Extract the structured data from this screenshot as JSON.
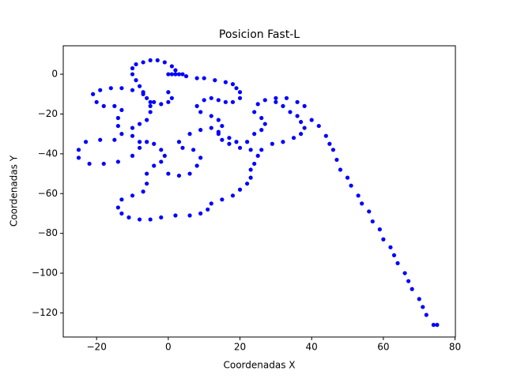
{
  "chart_data": {
    "type": "scatter",
    "title": "Posicion Fast-L",
    "x_label": "Coordenadas X",
    "y_label": "Coordenadas Y",
    "color": "#0000ff",
    "xlim": [
      -29.3,
      80.1
    ],
    "ylim": [
      -132.1,
      14.3
    ],
    "xticks": [
      {
        "value": -20,
        "label": "−20"
      },
      0,
      20,
      40,
      60,
      80
    ],
    "yticks": [
      {
        "value": -120,
        "label": "−120"
      },
      {
        "value": -100,
        "label": "−100"
      },
      {
        "value": -80,
        "label": "−80"
      },
      {
        "value": -60,
        "label": "−60"
      },
      {
        "value": -40,
        "label": "−40"
      },
      {
        "value": -20,
        "label": "−20"
      },
      0
    ],
    "x": [
      0,
      1,
      2,
      3,
      4,
      2,
      1,
      -1,
      -3,
      -5,
      -7,
      -9,
      -10,
      -10,
      -9,
      -8,
      -7,
      -6,
      -4,
      -2,
      0,
      1,
      0,
      5,
      8,
      10,
      13,
      16,
      18,
      19,
      20,
      20,
      18,
      16,
      14,
      12,
      10,
      8,
      9,
      12,
      14,
      15,
      14,
      17,
      19,
      22,
      -5,
      -7,
      -10,
      -13,
      -16,
      -19,
      -21,
      -20,
      -18,
      -15,
      -13,
      -14,
      -14,
      -13,
      -15,
      -19,
      -23,
      -25,
      -25,
      -22,
      -18,
      -14,
      -10,
      -8,
      -6,
      -4,
      -2,
      -1,
      -2,
      -4,
      -6,
      -6,
      -7,
      -10,
      -13,
      -14,
      -13,
      -11,
      -8,
      -5,
      -2,
      2,
      6,
      9,
      11,
      12,
      15,
      18,
      20,
      22,
      23,
      23,
      24,
      25,
      26,
      -8,
      -10,
      -10,
      -8,
      -6,
      -5,
      -5,
      0,
      3,
      6,
      8,
      9,
      7,
      4,
      3,
      6,
      9,
      12,
      14,
      15,
      17,
      20,
      23,
      29,
      32,
      35,
      37,
      38,
      37,
      36,
      34,
      32,
      30,
      27,
      25,
      24,
      26,
      27,
      26,
      24,
      30,
      33,
      36,
      38,
      40,
      42,
      44,
      45,
      46,
      47,
      48,
      50,
      51,
      53,
      54,
      56,
      57,
      59,
      60,
      62,
      63,
      64,
      66,
      67,
      68,
      70,
      71,
      72,
      74,
      75
    ],
    "values": [
      0,
      0,
      0,
      0,
      0,
      2,
      4,
      6,
      7,
      7,
      6,
      5,
      3,
      0,
      -3,
      -6,
      -9,
      -12,
      -14,
      -15,
      -14,
      -12,
      -9,
      -1,
      -2,
      -2,
      -3,
      -4,
      -5,
      -7,
      -9,
      -12,
      -14,
      -14,
      -13,
      -12,
      -13,
      -16,
      -19,
      -21,
      -23,
      -26,
      -29,
      -32,
      -34,
      -34,
      -14,
      -10,
      -8,
      -7,
      -7,
      -8,
      -10,
      -14,
      -16,
      -16,
      -18,
      -22,
      -26,
      -30,
      -33,
      -33,
      -34,
      -38,
      -42,
      -45,
      -45,
      -44,
      -41,
      -37,
      -34,
      -35,
      -38,
      -41,
      -44,
      -46,
      -50,
      -55,
      -59,
      -61,
      -63,
      -67,
      -70,
      -72,
      -73,
      -73,
      -72,
      -71,
      -71,
      -70,
      -68,
      -65,
      -63,
      -61,
      -58,
      -55,
      -52,
      -48,
      -45,
      -41,
      -38,
      -34,
      -31,
      -27,
      -25,
      -23,
      -19,
      -16,
      -50,
      -51,
      -50,
      -46,
      -42,
      -38,
      -37,
      -34,
      -30,
      -28,
      -27,
      -30,
      -33,
      -35,
      -37,
      -38,
      -35,
      -34,
      -32,
      -30,
      -27,
      -24,
      -21,
      -19,
      -16,
      -14,
      -13,
      -15,
      -19,
      -22,
      -25,
      -28,
      -30,
      -12,
      -12,
      -14,
      -16,
      -23,
      -26,
      -31,
      -35,
      -38,
      -43,
      -48,
      -52,
      -56,
      -61,
      -65,
      -69,
      -74,
      -78,
      -83,
      -87,
      -91,
      -95,
      -100,
      -104,
      -108,
      -113,
      -117,
      -121,
      -126,
      -126
    ]
  }
}
